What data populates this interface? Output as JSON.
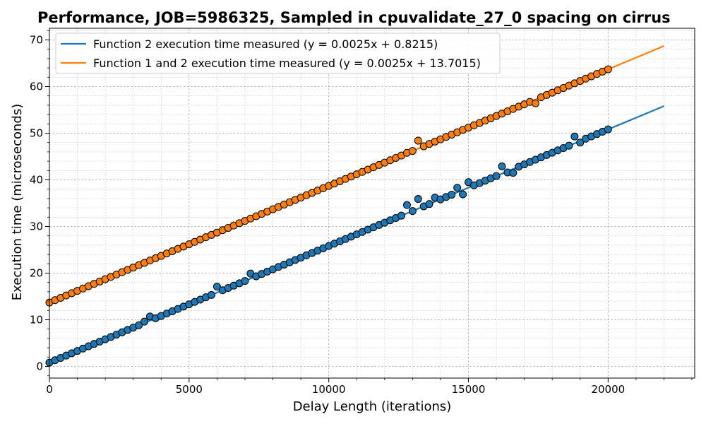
{
  "chart_data": {
    "type": "scatter",
    "title": "Performance, JOB=5986325, Sampled in cpuvalidate_27_0 spacing on cirrus",
    "xlabel": "Delay Length (iterations)",
    "ylabel": "Execution time (microseconds)",
    "xlim": [
      0,
      23100
    ],
    "ylim": [
      -2.5,
      72.5
    ],
    "xticks": [
      0,
      5000,
      10000,
      15000,
      20000
    ],
    "yticks": [
      0,
      10,
      20,
      30,
      40,
      50,
      60,
      70
    ],
    "grid": true,
    "legend_position": "top-left",
    "fit_x_range": [
      0,
      22000
    ],
    "series": [
      {
        "name": "Function 2 execution time measured (y = 0.0025x + 0.8215)",
        "color": "#1f77b4",
        "slope": 0.0025,
        "intercept": 0.8215,
        "x_start": 0,
        "x_step": 200,
        "count": 101,
        "outliers": [
          {
            "x": 12800,
            "y": 34.6
          },
          {
            "x": 13200,
            "y": 35.9
          },
          {
            "x": 13800,
            "y": 36.2
          },
          {
            "x": 14600,
            "y": 38.3
          },
          {
            "x": 14800,
            "y": 36.9
          },
          {
            "x": 15000,
            "y": 39.5
          },
          {
            "x": 16200,
            "y": 42.9
          },
          {
            "x": 16400,
            "y": 41.6
          },
          {
            "x": 16600,
            "y": 41.5
          },
          {
            "x": 18800,
            "y": 49.3
          },
          {
            "x": 19000,
            "y": 48.0
          },
          {
            "x": 7200,
            "y": 19.9
          },
          {
            "x": 6000,
            "y": 17.1
          },
          {
            "x": 3400,
            "y": 9.6
          },
          {
            "x": 3600,
            "y": 10.7
          }
        ]
      },
      {
        "name": "Function 1 and 2 execution time measured (y = 0.0025x + 13.7015)",
        "color": "#ff7f0e",
        "slope": 0.0025,
        "intercept": 13.7015,
        "x_start": 0,
        "x_step": 200,
        "count": 101,
        "outliers": [
          {
            "x": 13200,
            "y": 48.4
          },
          {
            "x": 12800,
            "y": 45.8
          },
          {
            "x": 17400,
            "y": 56.4
          }
        ]
      }
    ]
  }
}
